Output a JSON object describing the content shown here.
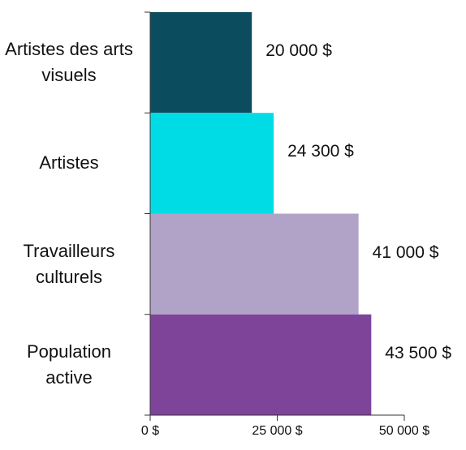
{
  "chart_data": {
    "type": "barh",
    "categories": [
      "Artistes des arts visuels",
      "Artistes",
      "Travailleurs culturels",
      "Population active"
    ],
    "values": [
      20000,
      24300,
      41000,
      43500
    ],
    "value_labels": [
      "20 000 $",
      "24 300 $",
      "41 000 $",
      "43 500 $"
    ],
    "colors": [
      "#0b4d5e",
      "#00dce6",
      "#b1a3c8",
      "#7d449a"
    ],
    "xlim": [
      0,
      50000
    ],
    "xticks": [
      {
        "value": 0,
        "label": "0 $"
      },
      {
        "value": 25000,
        "label": "25 000 $"
      },
      {
        "value": 50000,
        "label": "50 000 $"
      }
    ]
  }
}
